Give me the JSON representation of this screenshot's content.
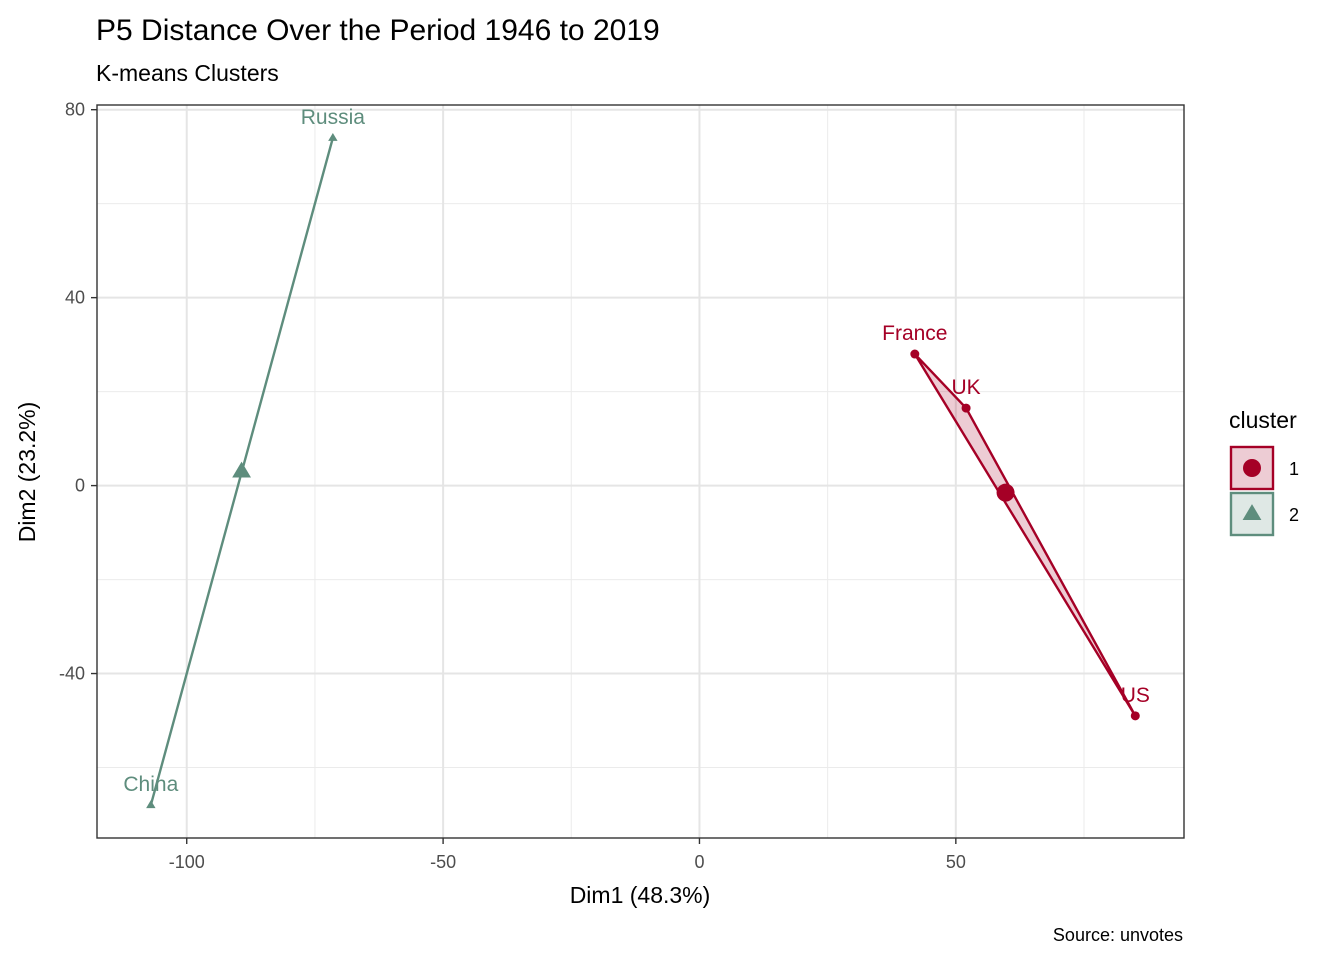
{
  "chart_data": {
    "type": "scatter",
    "title": "P5 Distance Over the Period 1946 to 2019",
    "subtitle": "K-means Clusters",
    "xlabel": "Dim1 (48.3%)",
    "ylabel": "Dim2 (23.2%)",
    "caption": "Source: unvotes",
    "xlim": [
      -117.5,
      94.5
    ],
    "ylim": [
      -75,
      81
    ],
    "x_ticks": [
      -100,
      -50,
      0,
      50
    ],
    "x_tick_labels": [
      "-100",
      "-50",
      "0",
      "50"
    ],
    "y_ticks": [
      -40,
      0,
      40,
      80
    ],
    "y_tick_labels": [
      "-40",
      "0",
      "40",
      "80"
    ],
    "grid": true,
    "legend": {
      "title": "cluster",
      "position": "right"
    },
    "series": [
      {
        "name": "1",
        "color": "#a50026",
        "shape": "circle",
        "points": [
          {
            "label": "France",
            "x": 42,
            "y": 28
          },
          {
            "label": "UK",
            "x": 52,
            "y": 16.5
          },
          {
            "label": "US",
            "x": 85,
            "y": -49
          }
        ],
        "centroid": {
          "x": 59.7,
          "y": -1.5
        }
      },
      {
        "name": "2",
        "color": "#5e8d7d",
        "shape": "triangle",
        "points": [
          {
            "label": "Russia",
            "x": -71.5,
            "y": 74
          },
          {
            "label": "China",
            "x": -107,
            "y": -68
          }
        ],
        "centroid": {
          "x": -89.3,
          "y": 3
        }
      }
    ]
  }
}
